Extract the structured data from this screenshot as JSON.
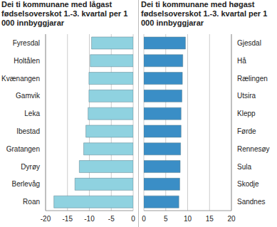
{
  "chart_data": [
    {
      "type": "bar",
      "title": "Dei ti kommunane med lågast fødselsoverskot 1.-3. kvartal per 1 000 innbyggjarar",
      "orientation": "horizontal",
      "categories": [
        "Fyresdal",
        "Holtålen",
        "Kvænangen",
        "Gamvik",
        "Leka",
        "Ibestad",
        "Gratangen",
        "Dyrøy",
        "Berlevåg",
        "Roan"
      ],
      "values": [
        -9.5,
        -9.8,
        -10.1,
        -10.1,
        -10.3,
        -10.8,
        -11.3,
        -12.3,
        -13.3,
        -18.1
      ],
      "color": "#8fd2e0",
      "xlim": [
        -20,
        0
      ],
      "xticks": [
        -20,
        -15,
        -10,
        -5,
        0
      ],
      "grid": true
    },
    {
      "type": "bar",
      "title": "Dei ti kommunane med høgast fødselsoverskot 1.-3. kvartal per 1 000 innbyggjarar",
      "orientation": "horizontal",
      "categories": [
        "Gjesdal",
        "Hå",
        "Rælingen",
        "Utsira",
        "Klepp",
        "Førde",
        "Rennesøy",
        "Sula",
        "Skodje",
        "Sandnes"
      ],
      "values": [
        9.5,
        8.9,
        8.8,
        8.7,
        8.5,
        8.5,
        8.4,
        8.3,
        8.2,
        8.0
      ],
      "color": "#3a8ec6",
      "xlim": [
        0,
        20
      ],
      "xticks": [
        0,
        5,
        10,
        15,
        20
      ],
      "grid": true
    }
  ]
}
